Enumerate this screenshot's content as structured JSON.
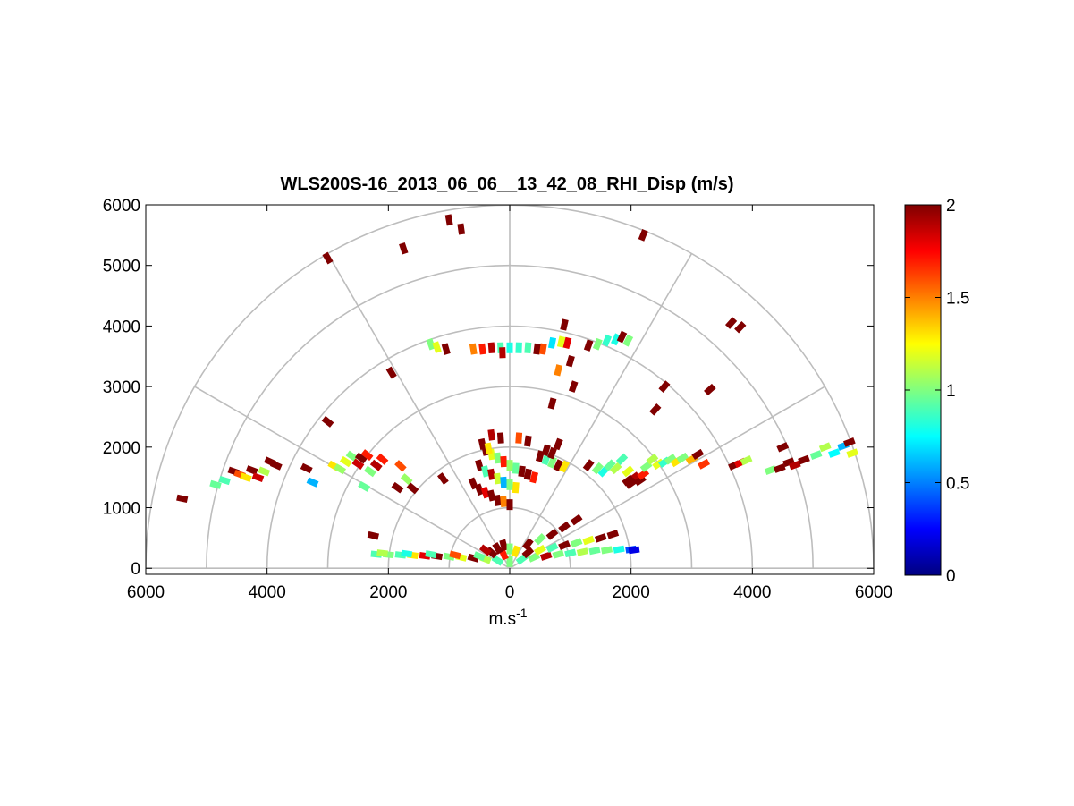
{
  "chart_data": {
    "type": "polar-rhi-scatter",
    "title": "WLS200S-16_2013_06_06__13_42_08_RHI_Disp (m/s)",
    "xlabel": "m.s",
    "xlabel_superscript": "-1",
    "ylabel": "",
    "xlim": [
      -6000,
      6000
    ],
    "ylim": [
      -100,
      6000
    ],
    "x_tick_values": [
      -6000,
      -4000,
      -2000,
      0,
      2000,
      4000,
      6000
    ],
    "x_tick_labels": [
      "6000",
      "4000",
      "2000",
      "0",
      "2000",
      "4000",
      "6000"
    ],
    "y_ticks": [
      0,
      1000,
      2000,
      3000,
      4000,
      5000,
      6000
    ],
    "y_tick_labels": [
      "0",
      "1000",
      "2000",
      "3000",
      "4000",
      "5000",
      "6000"
    ],
    "range_rings": [
      1000,
      2000,
      3000,
      4000,
      5000,
      6000
    ],
    "radial_lines_deg": [
      0,
      30,
      60,
      90,
      120,
      150,
      180
    ],
    "grid": true,
    "colorbar": {
      "colormap": "jet",
      "min": 0,
      "max": 2,
      "ticks": [
        0,
        0.5,
        1,
        1.5,
        2
      ],
      "tick_labels": [
        "0",
        "0.5",
        "1",
        "1.5",
        "2"
      ],
      "placement": "right"
    },
    "points": [
      [
        -5400,
        1150,
        2
      ],
      [
        -4850,
        1380,
        0.95
      ],
      [
        -4700,
        1450,
        0.9
      ],
      [
        -4550,
        1600,
        2
      ],
      [
        -4450,
        1550,
        1.6
      ],
      [
        -4350,
        1500,
        1.3
      ],
      [
        -4250,
        1620,
        2
      ],
      [
        -4150,
        1500,
        1.85
      ],
      [
        -4050,
        1600,
        1.1
      ],
      [
        -3950,
        1760,
        2
      ],
      [
        -3850,
        1700,
        2
      ],
      [
        -3350,
        1650,
        2
      ],
      [
        -3250,
        1420,
        0.6
      ],
      [
        -2900,
        1690,
        1.3
      ],
      [
        -2800,
        1640,
        1.05
      ],
      [
        -2700,
        1760,
        1.2
      ],
      [
        -2600,
        1850,
        1.0
      ],
      [
        -2500,
        1720,
        1.85
      ],
      [
        -2450,
        1820,
        2
      ],
      [
        -2350,
        1870,
        1.7
      ],
      [
        -2300,
        1600,
        1.0
      ],
      [
        -2400,
        1350,
        0.95
      ],
      [
        -2200,
        1700,
        1.9
      ],
      [
        -2100,
        1800,
        1.7
      ],
      [
        -1800,
        1690,
        1.6
      ],
      [
        -1700,
        1470,
        1.05
      ],
      [
        -1850,
        1330,
        2
      ],
      [
        -1600,
        1320,
        2
      ],
      [
        -2250,
        540,
        2
      ],
      [
        -1100,
        1480,
        2
      ],
      [
        -3000,
        2420,
        2
      ],
      [
        -1950,
        3230,
        2
      ],
      [
        -3000,
        5120,
        2
      ],
      [
        -1750,
        5280,
        2
      ],
      [
        -1000,
        5750,
        2
      ],
      [
        -800,
        5600,
        2
      ],
      [
        2200,
        5500,
        2
      ],
      [
        -1300,
        3700,
        1.0
      ],
      [
        -1200,
        3650,
        1.2
      ],
      [
        -1050,
        3620,
        2
      ],
      [
        -600,
        3620,
        1.5
      ],
      [
        -450,
        3620,
        1.7
      ],
      [
        -300,
        3640,
        1.9
      ],
      [
        -150,
        3640,
        0.9
      ],
      [
        0,
        3640,
        0.8
      ],
      [
        150,
        3640,
        0.85
      ],
      [
        300,
        3640,
        0.9
      ],
      [
        450,
        3620,
        2
      ],
      [
        550,
        3620,
        1.6
      ],
      [
        -120,
        3560,
        1.9
      ],
      [
        700,
        3720,
        0.7
      ],
      [
        850,
        3740,
        1.2
      ],
      [
        950,
        3720,
        1.8
      ],
      [
        1300,
        3680,
        2
      ],
      [
        1450,
        3700,
        1.0
      ],
      [
        1600,
        3760,
        0.85
      ],
      [
        1750,
        3780,
        0.8
      ],
      [
        1850,
        3820,
        2
      ],
      [
        1950,
        3760,
        1.0
      ],
      [
        900,
        4020,
        2
      ],
      [
        1000,
        3420,
        2
      ],
      [
        800,
        3270,
        1.5
      ],
      [
        1050,
        3000,
        2
      ],
      [
        700,
        2720,
        2
      ],
      [
        2400,
        2620,
        2
      ],
      [
        2550,
        3000,
        2
      ],
      [
        3300,
        2950,
        2
      ],
      [
        3650,
        4050,
        2
      ],
      [
        3800,
        3980,
        2
      ],
      [
        -300,
        2200,
        1.9
      ],
      [
        -150,
        2150,
        2
      ],
      [
        150,
        2150,
        1.6
      ],
      [
        300,
        2100,
        2
      ],
      [
        -400,
        1950,
        2
      ],
      [
        -300,
        1880,
        1.2
      ],
      [
        -200,
        1820,
        1.0
      ],
      [
        -100,
        1760,
        1.7
      ],
      [
        0,
        1700,
        1.05
      ],
      [
        100,
        1650,
        0.95
      ],
      [
        200,
        1600,
        2
      ],
      [
        -500,
        1700,
        2
      ],
      [
        -400,
        1600,
        0.9
      ],
      [
        -300,
        1550,
        1.9
      ],
      [
        -200,
        1480,
        1.15
      ],
      [
        -100,
        1420,
        0.6
      ],
      [
        0,
        1380,
        1.0
      ],
      [
        100,
        1330,
        1.3
      ],
      [
        300,
        1550,
        2
      ],
      [
        400,
        1500,
        1.7
      ],
      [
        500,
        1850,
        2
      ],
      [
        600,
        1800,
        0.9
      ],
      [
        700,
        1750,
        1.0
      ],
      [
        800,
        1700,
        2
      ],
      [
        900,
        1680,
        1.3
      ],
      [
        -600,
        1400,
        2
      ],
      [
        -500,
        1300,
        2
      ],
      [
        -400,
        1250,
        1.8
      ],
      [
        -300,
        1200,
        2
      ],
      [
        -200,
        1120,
        2
      ],
      [
        -100,
        1100,
        1.5
      ],
      [
        0,
        1050,
        2
      ],
      [
        -450,
        2050,
        2
      ],
      [
        -350,
        1980,
        1.3
      ],
      [
        600,
        1950,
        2
      ],
      [
        700,
        1900,
        2
      ],
      [
        800,
        2050,
        2
      ],
      [
        1300,
        1700,
        2
      ],
      [
        1450,
        1650,
        1.0
      ],
      [
        1550,
        1600,
        0.8
      ],
      [
        1650,
        1700,
        0.95
      ],
      [
        1750,
        1650,
        1.1
      ],
      [
        1850,
        1800,
        0.9
      ],
      [
        1950,
        1600,
        1.2
      ],
      [
        2050,
        1500,
        1.9
      ],
      [
        2150,
        1450,
        2
      ],
      [
        1950,
        1450,
        2
      ],
      [
        2200,
        1550,
        1.7
      ],
      [
        2250,
        1680,
        1.0
      ],
      [
        2350,
        1800,
        1.1
      ],
      [
        2450,
        1720,
        1.2
      ],
      [
        2550,
        1750,
        0.85
      ],
      [
        2650,
        1800,
        1.0
      ],
      [
        2750,
        1760,
        1.3
      ],
      [
        2850,
        1820,
        1.0
      ],
      [
        3000,
        1800,
        1.4
      ],
      [
        3100,
        1880,
        2
      ],
      [
        3200,
        1720,
        1.65
      ],
      [
        2000,
        1400,
        2
      ],
      [
        3700,
        1700,
        2
      ],
      [
        3800,
        1740,
        1.8
      ],
      [
        3900,
        1780,
        1.1
      ],
      [
        4300,
        1620,
        1.0
      ],
      [
        4450,
        1650,
        2
      ],
      [
        4500,
        2000,
        2
      ],
      [
        4600,
        1750,
        2
      ],
      [
        4700,
        1700,
        1.9
      ],
      [
        4850,
        1790,
        2
      ],
      [
        5050,
        1870,
        0.95
      ],
      [
        5200,
        2000,
        1.1
      ],
      [
        5350,
        1900,
        0.75
      ],
      [
        5500,
        2020,
        0.6
      ],
      [
        5650,
        1900,
        1.2
      ],
      [
        5600,
        2080,
        2
      ],
      [
        -2200,
        230,
        0.9
      ],
      [
        -2000,
        225,
        1.0
      ],
      [
        -1800,
        220,
        0.9
      ],
      [
        -1600,
        215,
        1.3
      ],
      [
        -1400,
        205,
        1.8
      ],
      [
        -1200,
        200,
        2
      ],
      [
        -1000,
        190,
        1.0
      ],
      [
        -800,
        180,
        1.2
      ],
      [
        -600,
        170,
        2
      ],
      [
        -400,
        150,
        1.1
      ],
      [
        -200,
        130,
        0.9
      ],
      [
        0,
        110,
        1.0
      ],
      [
        -2100,
        250,
        1.1
      ],
      [
        -1700,
        240,
        0.8
      ],
      [
        -1300,
        230,
        0.9
      ],
      [
        -900,
        220,
        1.6
      ],
      [
        -500,
        200,
        0.95
      ],
      [
        -300,
        260,
        2
      ],
      [
        -100,
        230,
        1.7
      ],
      [
        200,
        150,
        0.9
      ],
      [
        400,
        180,
        1.0
      ],
      [
        600,
        200,
        1.9
      ],
      [
        800,
        230,
        1.0
      ],
      [
        1000,
        250,
        0.9
      ],
      [
        1200,
        270,
        1.1
      ],
      [
        1400,
        290,
        0.95
      ],
      [
        1600,
        300,
        1.0
      ],
      [
        1800,
        310,
        0.8
      ],
      [
        2000,
        310,
        0.4
      ],
      [
        2050,
        300,
        0.2
      ],
      [
        300,
        260,
        2
      ],
      [
        500,
        300,
        1.2
      ],
      [
        700,
        340,
        0.9
      ],
      [
        900,
        380,
        2
      ],
      [
        1100,
        420,
        1.0
      ],
      [
        1300,
        460,
        1.2
      ],
      [
        1500,
        500,
        2
      ],
      [
        1700,
        560,
        2
      ],
      [
        300,
        400,
        2
      ],
      [
        500,
        480,
        1.0
      ],
      [
        700,
        560,
        2
      ],
      [
        900,
        680,
        2
      ],
      [
        1100,
        800,
        2
      ],
      [
        -100,
        380,
        2
      ],
      [
        0,
        320,
        1.0
      ],
      [
        100,
        280,
        1.3
      ],
      [
        -200,
        330,
        2
      ],
      [
        -400,
        300,
        1.9
      ]
    ]
  }
}
